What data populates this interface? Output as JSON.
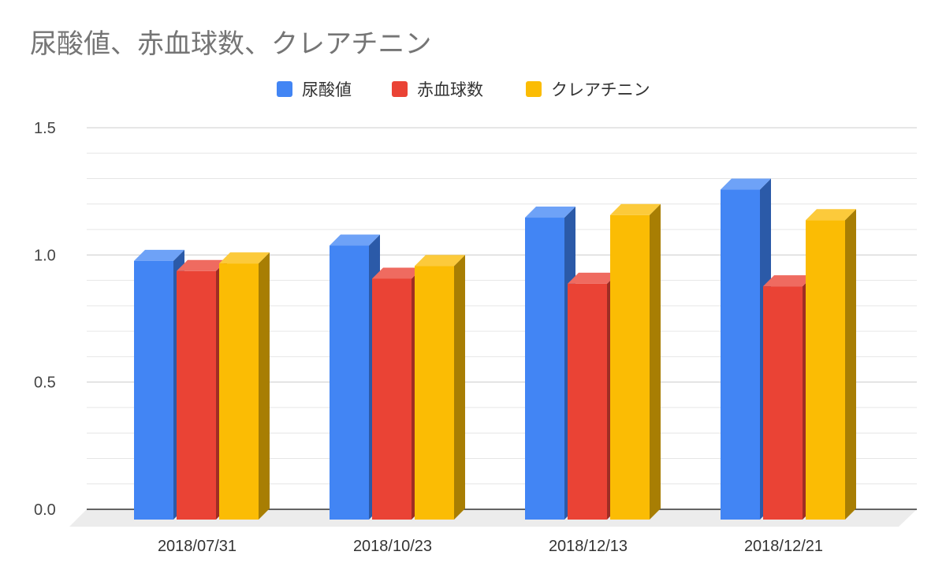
{
  "chart_data": {
    "type": "bar",
    "title": "尿酸値、赤血球数、クレアチニン",
    "xlabel": "",
    "ylabel": "",
    "categories": [
      "2018/07/31",
      "2018/10/23",
      "2018/12/13",
      "2018/12/21"
    ],
    "series": [
      {
        "name": "尿酸値",
        "color": "#4285f4",
        "side_color": "#2b5aa8",
        "top_color": "#6ea2f7",
        "values": [
          1.02,
          1.08,
          1.19,
          1.3
        ]
      },
      {
        "name": "赤血球数",
        "color": "#ea4335",
        "side_color": "#9e2d24",
        "top_color": "#ef6b60",
        "values": [
          0.98,
          0.95,
          0.93,
          0.92
        ]
      },
      {
        "name": "クレアチニン",
        "color": "#fbbc04",
        "side_color": "#a87e03",
        "top_color": "#fcca3b",
        "values": [
          1.01,
          1.0,
          1.2,
          1.18
        ]
      }
    ],
    "ylim": [
      0,
      1.5
    ],
    "yticks": [
      "0.0",
      "0.5",
      "1.0",
      "1.5"
    ],
    "grid": true,
    "legend_position": "top-center",
    "style": "3d"
  }
}
